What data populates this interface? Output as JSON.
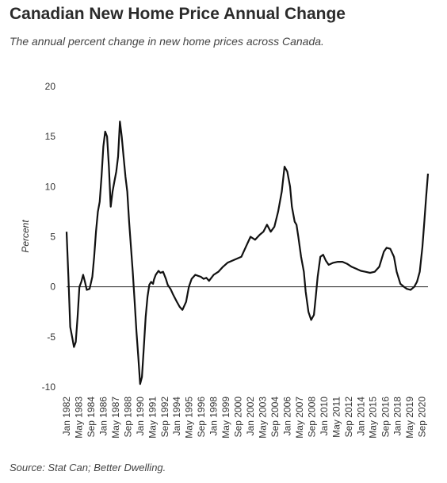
{
  "chart_data": {
    "type": "line",
    "title": "Canadian New Home Price Annual Change",
    "subtitle": "The annual percent change in new home prices across Canada.",
    "source": "Source: Stat Can; Better Dwelling.",
    "xlabel": "",
    "ylabel": "Percent",
    "ylim": [
      -10,
      20
    ],
    "xlim": [
      1982.0,
      2021.3
    ],
    "yticks": [
      -10,
      -5,
      0,
      5,
      10,
      15,
      20
    ],
    "x_tick_labels": [
      {
        "x": 1982.0,
        "label": "Jan 1982"
      },
      {
        "x": 1983.33,
        "label": "May 1983"
      },
      {
        "x": 1984.67,
        "label": "Sep 1984"
      },
      {
        "x": 1986.0,
        "label": "Jan 1986"
      },
      {
        "x": 1987.33,
        "label": "May 1987"
      },
      {
        "x": 1988.67,
        "label": "Sep 1988"
      },
      {
        "x": 1990.0,
        "label": "Jan 1990"
      },
      {
        "x": 1991.33,
        "label": "May 1991"
      },
      {
        "x": 1992.67,
        "label": "Sep 1992"
      },
      {
        "x": 1994.0,
        "label": "Jan 1994"
      },
      {
        "x": 1995.33,
        "label": "May 1995"
      },
      {
        "x": 1996.67,
        "label": "Sep 1996"
      },
      {
        "x": 1998.0,
        "label": "Jan 1998"
      },
      {
        "x": 1999.33,
        "label": "May 1999"
      },
      {
        "x": 2000.67,
        "label": "Sep 2000"
      },
      {
        "x": 2002.0,
        "label": "Jan 2002"
      },
      {
        "x": 2003.33,
        "label": "May 2003"
      },
      {
        "x": 2004.67,
        "label": "Sep 2004"
      },
      {
        "x": 2006.0,
        "label": "Jan 2006"
      },
      {
        "x": 2007.33,
        "label": "May 2007"
      },
      {
        "x": 2008.67,
        "label": "Sep 2008"
      },
      {
        "x": 2010.0,
        "label": "Jan 2010"
      },
      {
        "x": 2011.33,
        "label": "May 2011"
      },
      {
        "x": 2012.67,
        "label": "Sep 2012"
      },
      {
        "x": 2014.0,
        "label": "Jan 2014"
      },
      {
        "x": 2015.33,
        "label": "May 2015"
      },
      {
        "x": 2016.67,
        "label": "Sep 2016"
      },
      {
        "x": 2018.0,
        "label": "Jan 2018"
      },
      {
        "x": 2019.33,
        "label": "May 2019"
      },
      {
        "x": 2020.67,
        "label": "Sep 2020"
      }
    ],
    "grid": false,
    "zero_line": true,
    "line_color": "#111111",
    "series": [
      {
        "x": [
          1982.0,
          1982.2,
          1982.4,
          1982.6,
          1982.8,
          1983.0,
          1983.2,
          1983.4,
          1983.6,
          1983.8,
          1984.0,
          1984.2,
          1984.5,
          1984.8,
          1985.0,
          1985.2,
          1985.4,
          1985.6,
          1985.8,
          1986.0,
          1986.2,
          1986.4,
          1986.6,
          1986.8,
          1987.0,
          1987.2,
          1987.4,
          1987.6,
          1987.8,
          1988.0,
          1988.2,
          1988.4,
          1988.6,
          1988.8,
          1989.0,
          1989.2,
          1989.4,
          1989.6,
          1989.8,
          1990.0,
          1990.2,
          1990.4,
          1990.6,
          1990.8,
          1991.0,
          1991.2,
          1991.4,
          1991.5,
          1991.7,
          1992.0,
          1992.2,
          1992.5,
          1992.8,
          1993.0,
          1993.3,
          1993.6,
          1994.0,
          1994.3,
          1994.6,
          1995.0,
          1995.3,
          1995.6,
          1996.0,
          1996.3,
          1996.6,
          1996.9,
          1997.2,
          1997.5,
          1998.0,
          1998.5,
          1999.0,
          1999.5,
          2000.0,
          2000.5,
          2001.0,
          2001.5,
          2002.0,
          2002.5,
          2003.0,
          2003.4,
          2003.8,
          2004.2,
          2004.6,
          2005.0,
          2005.4,
          2005.7,
          2006.0,
          2006.3,
          2006.5,
          2006.8,
          2007.0,
          2007.2,
          2007.5,
          2007.8,
          2008.0,
          2008.3,
          2008.6,
          2008.9,
          2009.1,
          2009.3,
          2009.6,
          2009.9,
          2010.2,
          2010.5,
          2011.0,
          2011.5,
          2012.0,
          2012.5,
          2013.0,
          2013.5,
          2014.0,
          2014.5,
          2015.0,
          2015.5,
          2016.0,
          2016.5,
          2016.8,
          2017.2,
          2017.6,
          2017.9,
          2018.3,
          2018.7,
          2019.0,
          2019.4,
          2019.8,
          2020.1,
          2020.4,
          2020.7,
          2020.9,
          2021.1,
          2021.3
        ],
        "values": [
          5.5,
          1.0,
          -4.0,
          -5.0,
          -6.0,
          -5.5,
          -3.0,
          0.0,
          0.5,
          1.2,
          0.5,
          -0.3,
          -0.2,
          1.0,
          3.0,
          5.5,
          7.5,
          8.5,
          11.0,
          14.0,
          15.5,
          15.0,
          12.0,
          8.0,
          9.5,
          10.5,
          11.5,
          13.0,
          16.5,
          15.0,
          13.0,
          11.0,
          9.5,
          6.5,
          4.0,
          1.5,
          -1.5,
          -4.5,
          -7.0,
          -9.7,
          -9.0,
          -6.0,
          -3.0,
          -1.0,
          0.2,
          0.5,
          0.3,
          0.7,
          1.2,
          1.6,
          1.4,
          1.5,
          0.8,
          0.2,
          -0.2,
          -0.8,
          -1.5,
          -2.0,
          -2.3,
          -1.5,
          0.0,
          0.8,
          1.2,
          1.1,
          1.0,
          0.8,
          0.9,
          0.6,
          1.2,
          1.5,
          2.0,
          2.4,
          2.6,
          2.8,
          3.0,
          4.0,
          5.0,
          4.7,
          5.2,
          5.5,
          6.2,
          5.5,
          6.0,
          7.5,
          9.5,
          12.0,
          11.5,
          10.0,
          8.0,
          6.5,
          6.2,
          5.0,
          3.0,
          1.5,
          -0.5,
          -2.5,
          -3.3,
          -2.8,
          -1.0,
          1.0,
          3.0,
          3.2,
          2.6,
          2.2,
          2.4,
          2.5,
          2.5,
          2.3,
          2.0,
          1.8,
          1.6,
          1.5,
          1.4,
          1.5,
          2.0,
          3.5,
          3.9,
          3.8,
          3.0,
          1.5,
          0.3,
          0.0,
          -0.2,
          -0.3,
          0.0,
          0.5,
          1.5,
          4.0,
          6.5,
          9.0,
          11.3
        ]
      }
    ]
  }
}
